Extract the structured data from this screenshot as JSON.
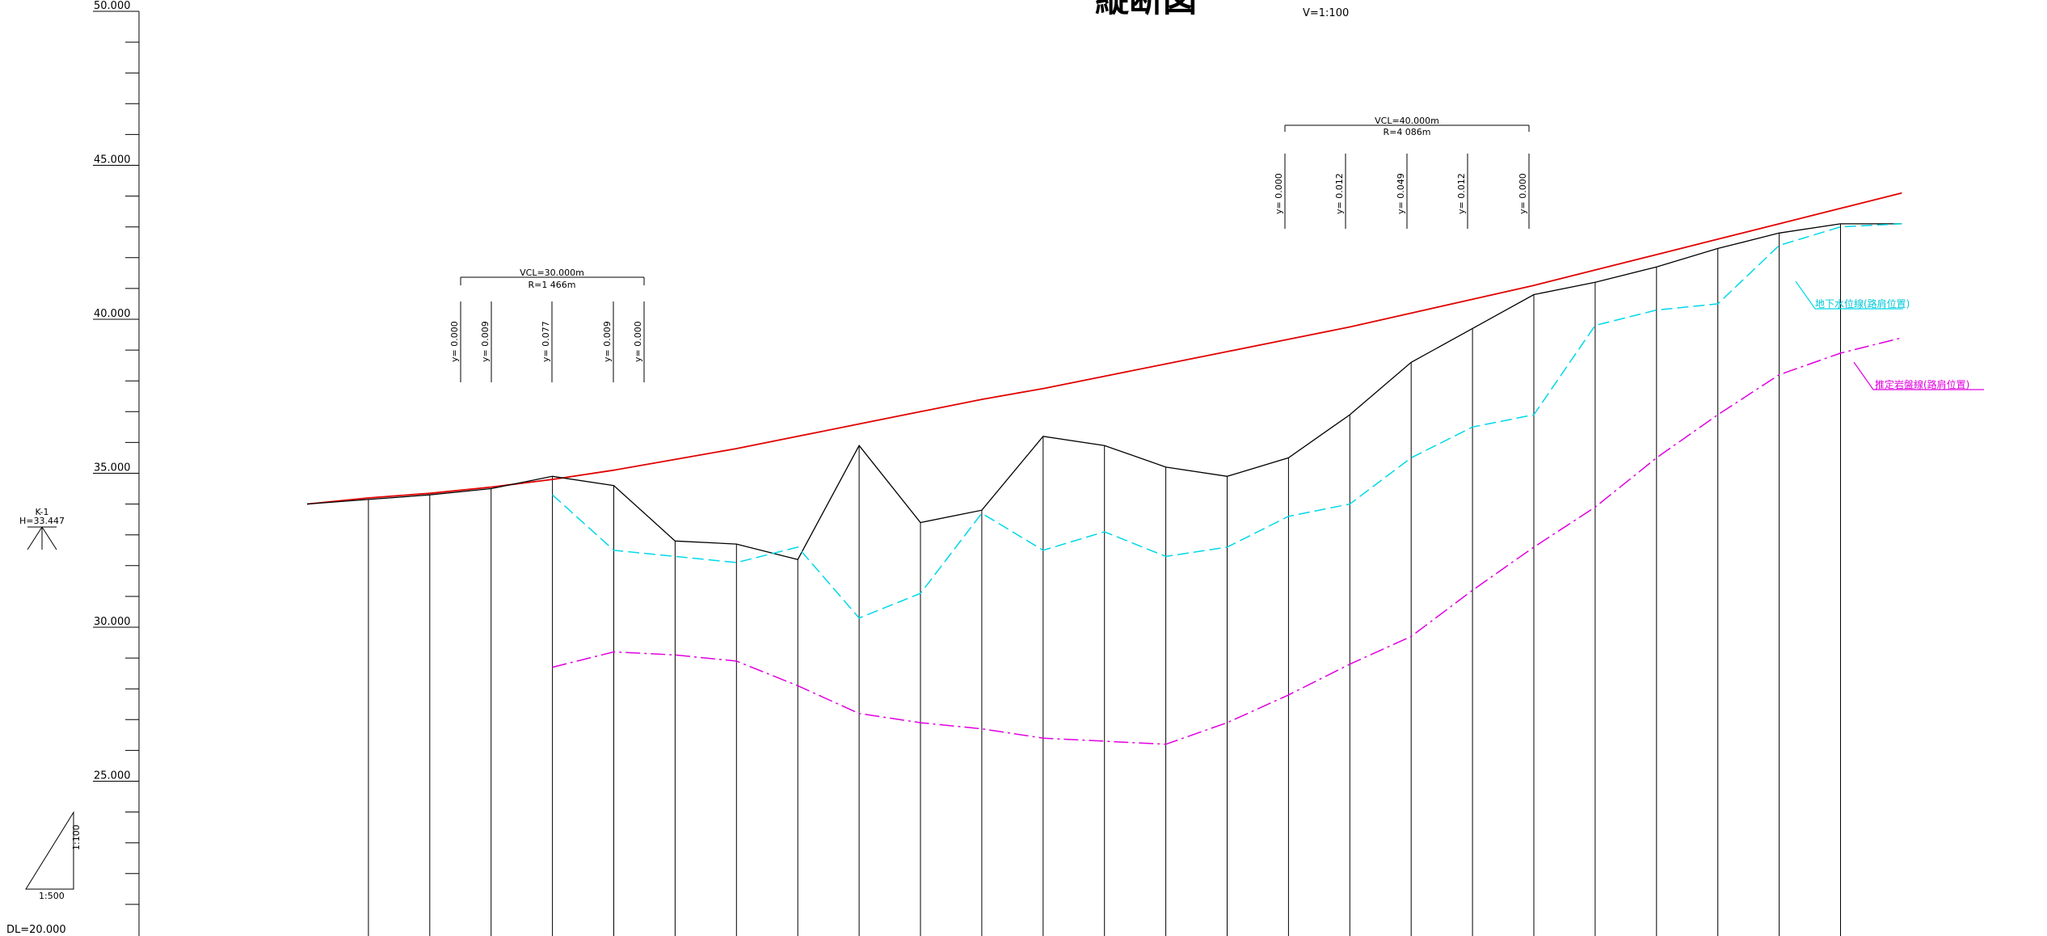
{
  "title": "縦断図",
  "vertical_scale": "V=1:100",
  "datum": "DL=20.000",
  "elevation_axis": {
    "labels": [
      "50.000",
      "45.000",
      "40.000",
      "35.000",
      "30.000",
      "25.000"
    ],
    "values": [
      50,
      45,
      40,
      35,
      30,
      25
    ],
    "min": 20,
    "max": 50
  },
  "benchmark": {
    "name": "K-1",
    "height": "H=33.447"
  },
  "slope_legend": {
    "vertical": "1:100",
    "horizontal": "1:500"
  },
  "vertical_curves": [
    {
      "vcl": "VCL=30.000m",
      "r": "R=1 466m",
      "offsets": [
        "y= 0.000",
        "y= 0.009",
        "y= 0.077",
        "y= 0.009",
        "y= 0.000"
      ]
    },
    {
      "vcl": "VCL=40.000m",
      "r": "R=4 086m",
      "offsets": [
        "y= 0.000",
        "y= 0.012",
        "y= 0.049",
        "y= 0.012",
        "y= 0.000"
      ]
    }
  ],
  "line_labels": {
    "groundwater": "地下水位線(路肩位置)",
    "estimated_rock": "推定岩盤線(路肩位置)"
  },
  "colors": {
    "plan_line": "#e00000",
    "groundwater": "#00d8e8",
    "rock": "#e000e0",
    "ground": "#000000"
  },
  "chart_data": {
    "type": "line",
    "x": [
      0,
      20,
      40,
      60,
      80,
      100,
      120,
      140,
      160,
      180,
      200,
      220,
      240,
      260,
      280,
      300,
      320,
      340,
      360,
      380,
      400,
      420,
      440,
      460,
      480,
      500,
      520
    ],
    "series": [
      {
        "name": "",
        "values": [
          34.0,
          34.2,
          34.35,
          34.55,
          34.8,
          35.1,
          35.45,
          35.8,
          36.2,
          36.6,
          37.0,
          37.4,
          37.75,
          38.15,
          38.55,
          38.95,
          39.35,
          39.75,
          40.2,
          40.65,
          41.1,
          41.6,
          42.1,
          42.6,
          43.1,
          43.6,
          44.1
        ]
      },
      {
        "name": "",
        "values": [
          34.0,
          34.15,
          34.3,
          34.5,
          34.9,
          34.6,
          32.8,
          32.7,
          32.2,
          35.9,
          33.4,
          33.8,
          36.2,
          35.9,
          35.2,
          34.9,
          35.5,
          36.9,
          38.6,
          39.7,
          40.8,
          41.2,
          41.7,
          42.3,
          42.8,
          43.1,
          43.1
        ]
      },
      {
        "name": "地下水位線(路肩位置)",
        "values": [
          null,
          null,
          null,
          null,
          34.3,
          32.5,
          32.3,
          32.1,
          32.6,
          30.3,
          31.1,
          33.7,
          32.5,
          33.1,
          32.3,
          32.6,
          33.6,
          34.0,
          35.5,
          36.5,
          36.9,
          39.8,
          40.3,
          40.5,
          42.4,
          43.0,
          43.1
        ]
      },
      {
        "name": "推定岩盤線(路肩位置)",
        "values": [
          null,
          null,
          null,
          null,
          28.7,
          29.2,
          29.1,
          28.9,
          28.1,
          27.2,
          26.9,
          26.7,
          26.4,
          26.3,
          26.2,
          26.9,
          27.8,
          28.8,
          29.7,
          31.2,
          32.6,
          33.9,
          35.5,
          36.9,
          38.2,
          38.9,
          39.4
        ]
      }
    ],
    "ylim": [
      20,
      50
    ]
  }
}
